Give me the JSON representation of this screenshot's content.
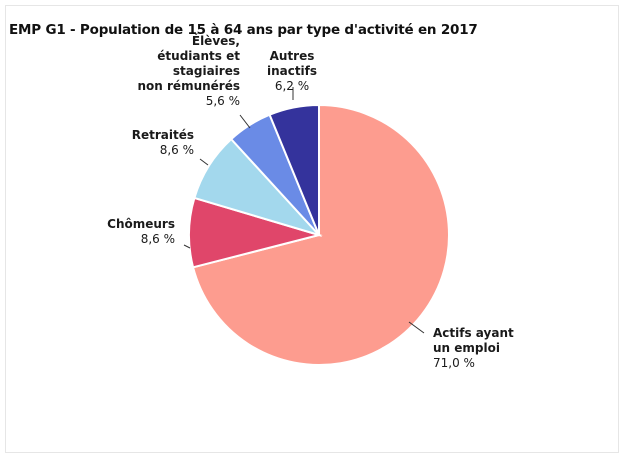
{
  "chart_data": {
    "type": "pie",
    "title": "EMP G1 - Population de 15 à 64 ans par type d'activité en 2017",
    "slices": [
      {
        "label_lines": [
          "Actifs ayant",
          "un emploi"
        ],
        "value": 71.0,
        "value_label": "71,0 %",
        "color": "#fd9c8f"
      },
      {
        "label_lines": [
          "Chômeurs"
        ],
        "value": 8.6,
        "value_label": "8,6 %",
        "color": "#e0466a"
      },
      {
        "label_lines": [
          "Retraités"
        ],
        "value": 8.6,
        "value_label": "8,6 %",
        "color": "#a3d8ed"
      },
      {
        "label_lines": [
          "Élèves,",
          "étudiants et",
          "stagiaires",
          "non rémunérés"
        ],
        "value": 5.6,
        "value_label": "5,6 %",
        "color": "#6a8be6"
      },
      {
        "label_lines": [
          "Autres",
          "inactifs"
        ],
        "value": 6.2,
        "value_label": "6,2 %",
        "color": "#34339c"
      }
    ]
  }
}
